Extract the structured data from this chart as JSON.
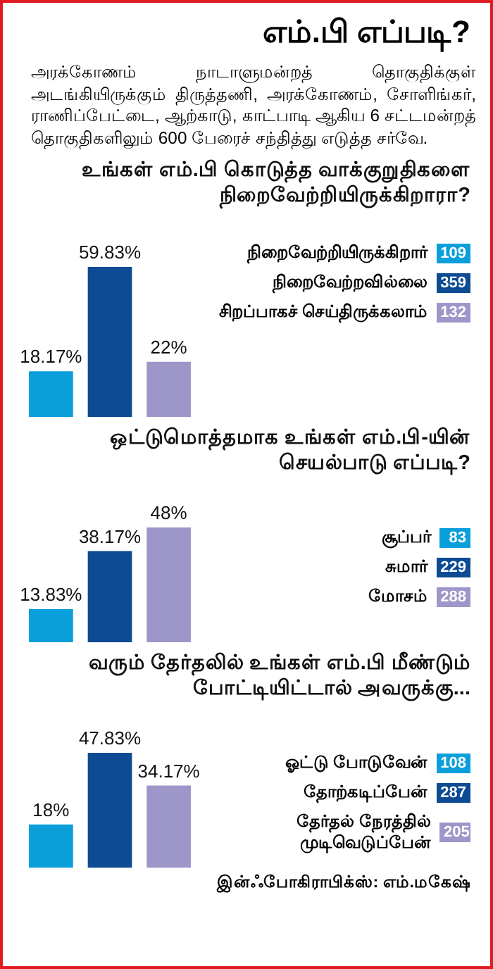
{
  "chart_data": [
    {
      "type": "other",
      "title": "எம்.பி எப்படி?",
      "subtitle": "அரக்கோணம் நாடாளுமன்றத் தொகுதிக்குள் அடங்கியிருக்கும் திருத்தணி, அரக்கோணம், சோளிங்கர், ராணிப்பேட்டை, ஆற்காடு, காட்பாடி ஆகிய 6 சட்டமன்றத் தொகுதிகளிலும் 600 பேரைச் சந்தித்து எடுத்த சர்வே."
    },
    {
      "type": "bar",
      "title": "உங்கள் எம்.பி கொடுத்த வாக்குறுதிகளை நிறைவேற்றியிருக்கிறாரா?",
      "categories": [
        null
      ],
      "series": [
        {
          "name": "நிறைவேற்றியிருக்கிறார்",
          "color": "#0a9fdb",
          "values": [
            18.17
          ],
          "value_labels": [
            "18.17%"
          ]
        },
        {
          "name": "நிறைவேற்றவில்லை",
          "color": "#0d4b93",
          "values": [
            59.83
          ],
          "value_labels": [
            "59.83%"
          ]
        },
        {
          "name": "சிறப்பாகச் செய்திருக்கலாம்",
          "color": "#9d96c9",
          "values": [
            22
          ],
          "value_labels": [
            "22%"
          ]
        }
      ],
      "annotations": [
        "109",
        "359",
        "132"
      ],
      "legend": "right",
      "tick_labels": false
    },
    {
      "type": "bar",
      "title": "ஒட்டுமொத்தமாக உங்கள் எம்.பி-யின் செயல்பாடு எப்படி?",
      "categories": [
        null
      ],
      "series": [
        {
          "name": "சூப்பர்",
          "color": "#0a9fdb",
          "values": [
            13.83
          ],
          "value_labels": [
            "13.83%"
          ]
        },
        {
          "name": "சுமார்",
          "color": "#0d4b93",
          "values": [
            38.17
          ],
          "value_labels": [
            "38.17%"
          ]
        },
        {
          "name": "மோசம்",
          "color": "#9d96c9",
          "values": [
            48
          ],
          "value_labels": [
            "48%"
          ]
        }
      ],
      "annotations": [
        "83",
        "229",
        "288"
      ],
      "legend": "right",
      "tick_labels": false
    },
    {
      "type": "bar",
      "title": "வரும் தேர்தலில் உங்கள் எம்.பி மீண்டும் போட்டியிட்டால் அவருக்கு...",
      "categories": [
        null
      ],
      "series": [
        {
          "name": "ஓட்டு போடுவேன்",
          "color": "#0a9fdb",
          "values": [
            18
          ],
          "value_labels": [
            "18%"
          ]
        },
        {
          "name": "தோற்கடிப்பேன்",
          "color": "#0d4b93",
          "values": [
            47.83
          ],
          "value_labels": [
            "47.83%"
          ]
        },
        {
          "name": "தேர்தல் நேரத்தில் முடிவெடுப்பேன்",
          "color": "#9d96c9",
          "values": [
            34.17
          ],
          "value_labels": [
            "34.17%"
          ]
        }
      ],
      "annotations": [
        "108",
        "287",
        "205"
      ],
      "legend": "right",
      "tick_labels": false
    },
    {
      "type": "other",
      "annotations": [
        "இன்ஃபோகிராபிக்ஸ்: எம்.மகேஷ்"
      ]
    }
  ]
}
